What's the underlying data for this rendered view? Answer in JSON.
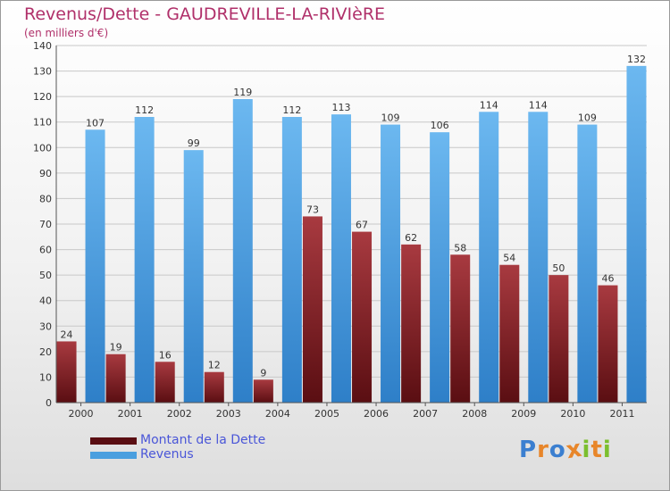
{
  "chart_data": {
    "type": "bar",
    "title": "Revenus/Dette - GAUDREVILLE-LA-RIVIèRE",
    "subtitle": "(en milliers d'€)",
    "categories": [
      "2000",
      "2001",
      "2002",
      "2003",
      "2004",
      "2005",
      "2006",
      "2007",
      "2008",
      "2009",
      "2010",
      "2011"
    ],
    "series": [
      {
        "name": "Montant de la Dette",
        "color": "#7a1e22",
        "values": [
          24,
          19,
          16,
          12,
          9,
          73,
          67,
          62,
          58,
          54,
          50,
          46
        ]
      },
      {
        "name": "Revenus",
        "color": "#4a9fdf",
        "values": [
          107,
          112,
          99,
          119,
          112,
          113,
          109,
          106,
          114,
          114,
          109,
          132
        ]
      }
    ],
    "ylim": [
      0,
      140
    ],
    "yticks": [
      0,
      10,
      20,
      30,
      40,
      50,
      60,
      70,
      80,
      90,
      100,
      110,
      120,
      130,
      140
    ],
    "grid": true,
    "legend_position": "bottom-left"
  },
  "logo": {
    "letters": [
      "P",
      "r",
      "o",
      "x",
      "i",
      "t",
      "i"
    ],
    "colors": [
      "#3b7fd0",
      "#e8862a",
      "#3b7fd0",
      "#e8862a",
      "#7bbf2f",
      "#e8862a",
      "#7bbf2f"
    ]
  },
  "colors": {
    "title": "#b0306a",
    "grid": "#c8c8c8",
    "dette_top": "#a83a40",
    "dette_bottom": "#5a0e12",
    "revenus_top": "#6cb8f0",
    "revenus_bottom": "#2e7fc8"
  }
}
